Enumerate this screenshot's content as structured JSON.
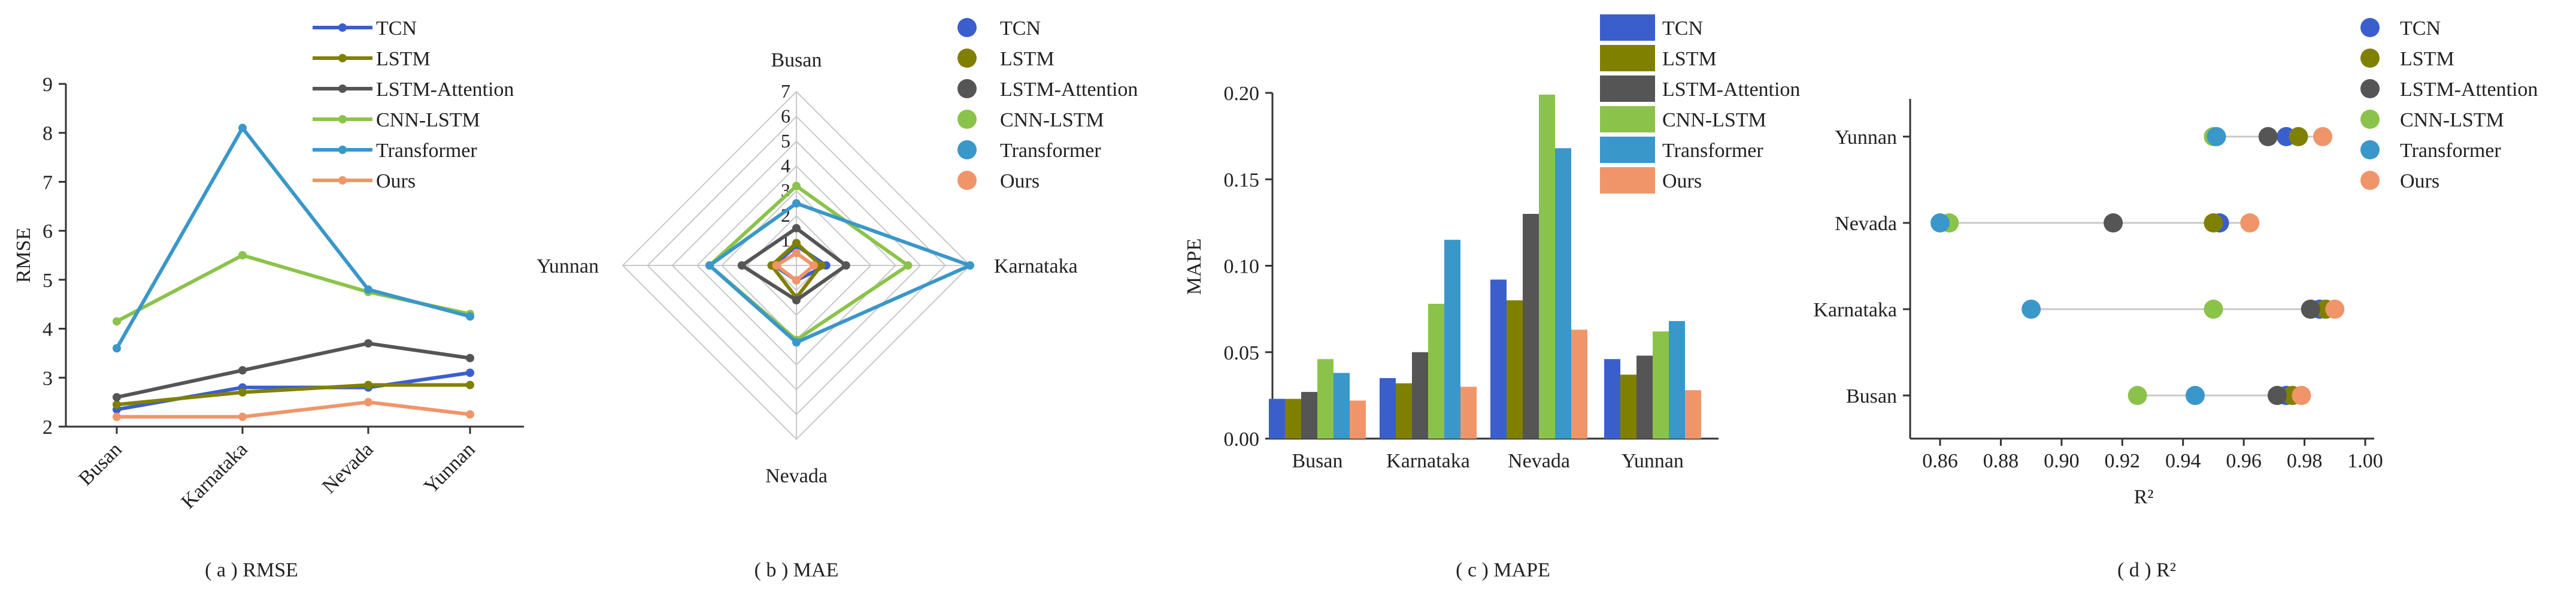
{
  "models": [
    "TCN",
    "LSTM",
    "LSTM-Attention",
    "CNN-LSTM",
    "Transformer",
    "Ours"
  ],
  "colors": [
    "#3a5fcd",
    "#808000",
    "#555555",
    "#8bc34a",
    "#3a97c9",
    "#f0956a"
  ],
  "regions": [
    "Busan",
    "Karnataka",
    "Nevada",
    "Yunnan"
  ],
  "chart_data": [
    {
      "type": "line",
      "id": "a",
      "title": "",
      "caption": "( a ) RMSE",
      "ylabel": "RMSE",
      "xlabel": "",
      "ylim": [
        2,
        9
      ],
      "yticks": [
        2,
        3,
        4,
        5,
        6,
        7,
        8,
        9
      ],
      "categories": [
        "Busan",
        "Karnataka",
        "Nevada",
        "Yunnan"
      ],
      "series": [
        {
          "name": "TCN",
          "values": [
            2.35,
            2.8,
            2.8,
            3.1
          ]
        },
        {
          "name": "LSTM",
          "values": [
            2.45,
            2.7,
            2.85,
            2.85
          ]
        },
        {
          "name": "LSTM-Attention",
          "values": [
            2.6,
            3.15,
            3.7,
            3.4
          ]
        },
        {
          "name": "CNN-LSTM",
          "values": [
            4.15,
            5.5,
            4.75,
            4.3
          ]
        },
        {
          "name": "Transformer",
          "values": [
            3.6,
            8.1,
            4.8,
            4.25
          ]
        },
        {
          "name": "Ours",
          "values": [
            2.2,
            2.2,
            2.5,
            2.25
          ]
        }
      ]
    },
    {
      "type": "radar",
      "id": "b",
      "caption": "( b ) MAE",
      "axes": [
        "Busan",
        "Karnataka",
        "Nevada",
        "Yunnan"
      ],
      "rmax": 7,
      "ticks": [
        1,
        2,
        3,
        4,
        5,
        6,
        7
      ],
      "series": [
        {
          "name": "TCN",
          "values": [
            0.8,
            1.2,
            0.6,
            0.9
          ]
        },
        {
          "name": "LSTM",
          "values": [
            0.9,
            1.0,
            1.3,
            1.0
          ]
        },
        {
          "name": "LSTM-Attention",
          "values": [
            1.5,
            2.0,
            1.4,
            2.2
          ]
        },
        {
          "name": "CNN-LSTM",
          "values": [
            3.2,
            4.5,
            3.0,
            3.5
          ]
        },
        {
          "name": "Transformer",
          "values": [
            2.5,
            7.0,
            3.1,
            3.5
          ]
        },
        {
          "name": "Ours",
          "values": [
            0.5,
            0.7,
            0.6,
            0.8
          ]
        }
      ]
    },
    {
      "type": "bar",
      "id": "c",
      "caption": "( c ) MAPE",
      "ylabel": "MAPE",
      "ylim": [
        0,
        0.2
      ],
      "yticks": [
        "0.00",
        "0.05",
        "0.10",
        "0.15",
        "0.20"
      ],
      "categories": [
        "Busan",
        "Karnataka",
        "Nevada",
        "Yunnan"
      ],
      "series": [
        {
          "name": "TCN",
          "values": [
            0.023,
            0.035,
            0.092,
            0.046
          ]
        },
        {
          "name": "LSTM",
          "values": [
            0.023,
            0.032,
            0.08,
            0.037
          ]
        },
        {
          "name": "LSTM-Attention",
          "values": [
            0.027,
            0.05,
            0.13,
            0.048
          ]
        },
        {
          "name": "CNN-LSTM",
          "values": [
            0.046,
            0.078,
            0.199,
            0.062
          ]
        },
        {
          "name": "Transformer",
          "values": [
            0.038,
            0.115,
            0.168,
            0.068
          ]
        },
        {
          "name": "Ours",
          "values": [
            0.022,
            0.03,
            0.063,
            0.028
          ]
        }
      ]
    },
    {
      "type": "dot",
      "id": "d",
      "caption": "( d ) R²",
      "xlabel": "R²",
      "xlim": [
        0.85,
        1.0
      ],
      "xticks": [
        "0.86",
        "0.88",
        "0.90",
        "0.92",
        "0.94",
        "0.96",
        "0.98",
        "1.00"
      ],
      "categories": [
        "Busan",
        "Karnataka",
        "Nevada",
        "Yunnan"
      ],
      "series": [
        {
          "name": "TCN",
          "values": [
            0.974,
            0.985,
            0.952,
            0.974
          ]
        },
        {
          "name": "LSTM",
          "values": [
            0.976,
            0.987,
            0.95,
            0.978
          ]
        },
        {
          "name": "LSTM-Attention",
          "values": [
            0.971,
            0.982,
            0.917,
            0.968
          ]
        },
        {
          "name": "CNN-LSTM",
          "values": [
            0.925,
            0.95,
            0.863,
            0.95
          ]
        },
        {
          "name": "Transformer",
          "values": [
            0.944,
            0.89,
            0.86,
            0.951
          ]
        },
        {
          "name": "Ours",
          "values": [
            0.979,
            0.99,
            0.962,
            0.986
          ]
        }
      ]
    }
  ]
}
